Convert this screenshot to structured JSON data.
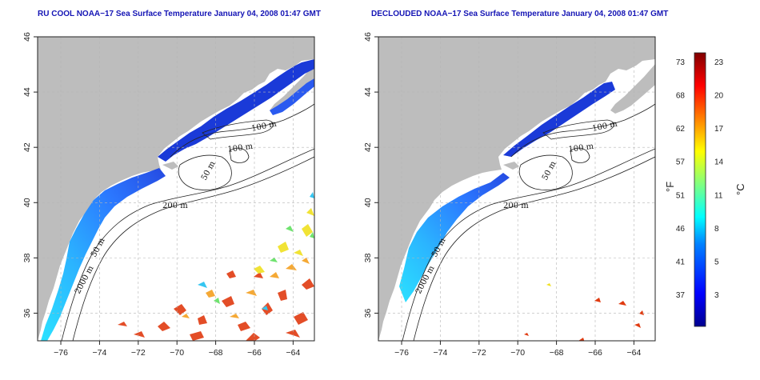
{
  "panels": [
    {
      "id": "left",
      "title": "RU COOL NOAA−17 Sea Surface Temperature January 04, 2008 01:47 GMT"
    },
    {
      "id": "right",
      "title": "DECLOUDED NOAA−17 Sea Surface Temperature January 04, 2008 01:47 GMT"
    }
  ],
  "axes": {
    "lon_ticks": [
      "−76",
      "−74",
      "−72",
      "−70",
      "−68",
      "−66",
      "−64"
    ],
    "lat_ticks": [
      "36",
      "38",
      "40",
      "42",
      "44",
      "46"
    ],
    "lon_values": [
      -76,
      -74,
      -72,
      -70,
      -68,
      -66,
      -64
    ],
    "lat_values": [
      36,
      38,
      40,
      42,
      44,
      46
    ],
    "lon_range": [
      -77.2,
      -62.9
    ],
    "lat_range": [
      35.0,
      46.0
    ]
  },
  "contour_labels": {
    "c100a": "100 m",
    "c100b": "100 m",
    "c50a": "50 m",
    "c200": "200 m",
    "c50b": "50 m",
    "c2000": "2000 m"
  },
  "colorbar": {
    "fahrenheit_ticks": [
      "73",
      "68",
      "62",
      "57",
      "51",
      "46",
      "41",
      "37"
    ],
    "celsius_ticks": [
      "23",
      "20",
      "17",
      "14",
      "11",
      "8",
      "5",
      "3"
    ],
    "f_unit": "°F",
    "c_unit": "°C",
    "colors": [
      "#00008f",
      "#0000ff",
      "#0080ff",
      "#00ffff",
      "#80ff80",
      "#ffff00",
      "#ff8000",
      "#ff0000",
      "#800000"
    ]
  },
  "colors": {
    "land": "#bdbdbd",
    "grid": "#b5b5b5",
    "title": "#1515b5"
  }
}
